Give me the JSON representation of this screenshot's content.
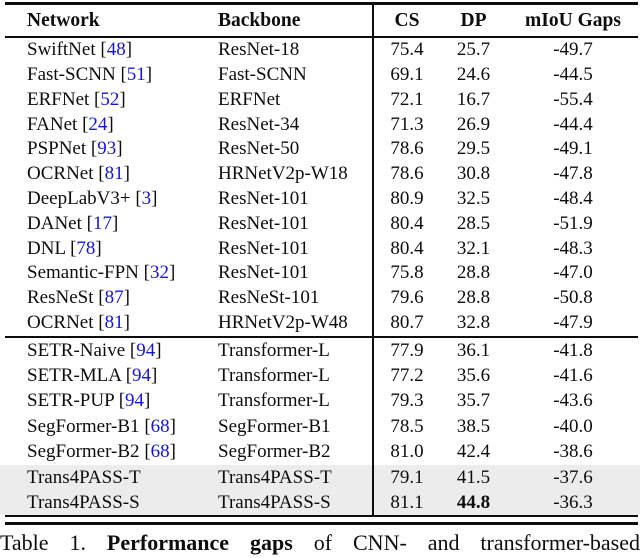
{
  "colors": {
    "cite_blue": "#1414dd",
    "highlight_gray": "#ececec"
  },
  "table": {
    "header": {
      "network": "Network",
      "backbone": "Backbone",
      "cs": "CS",
      "dp": "DP",
      "miou": "mIoU Gaps"
    },
    "rows": [
      {
        "network": "SwiftNet",
        "cite": {
          "pre": "[",
          "num": "48",
          "post": "]"
        },
        "backbone": "ResNet-18",
        "cs": "75.4",
        "dp": "25.7",
        "miou": "-49.7"
      },
      {
        "network": "Fast-SCNN",
        "cite": {
          "pre": "[",
          "num": "51",
          "post": "]"
        },
        "backbone": "Fast-SCNN",
        "cs": "69.1",
        "dp": "24.6",
        "miou": "-44.5"
      },
      {
        "network": "ERFNet",
        "cite": {
          "pre": "[",
          "num": "52",
          "post": "]"
        },
        "backbone": "ERFNet",
        "cs": "72.1",
        "dp": "16.7",
        "miou": "-55.4"
      },
      {
        "network": "FANet",
        "cite": {
          "pre": "[",
          "num": "24",
          "post": "]"
        },
        "backbone": "ResNet-34",
        "cs": "71.3",
        "dp": "26.9",
        "miou": "-44.4"
      },
      {
        "network": "PSPNet",
        "cite": {
          "pre": "[",
          "num": "93",
          "post": "]"
        },
        "backbone": "ResNet-50",
        "cs": "78.6",
        "dp": "29.5",
        "miou": "-49.1"
      },
      {
        "network": "OCRNet",
        "cite": {
          "pre": "[",
          "num": "81",
          "post": "]"
        },
        "backbone": "HRNetV2p-W18",
        "cs": "78.6",
        "dp": "30.8",
        "miou": "-47.8"
      },
      {
        "network": "DeepLabV3+",
        "cite": {
          "pre": "[",
          "num": "3",
          "post": "]"
        },
        "backbone": "ResNet-101",
        "cs": "80.9",
        "dp": "32.5",
        "miou": "-48.4"
      },
      {
        "network": "DANet",
        "cite": {
          "pre": "[",
          "num": "17",
          "post": "]"
        },
        "backbone": "ResNet-101",
        "cs": "80.4",
        "dp": "28.5",
        "miou": "-51.9"
      },
      {
        "network": "DNL",
        "cite": {
          "pre": "[",
          "num": "78",
          "post": "]"
        },
        "backbone": "ResNet-101",
        "cs": "80.4",
        "dp": "32.1",
        "miou": "-48.3"
      },
      {
        "network": "Semantic-FPN",
        "cite": {
          "pre": "[",
          "num": "32",
          "post": "]"
        },
        "backbone": "ResNet-101",
        "cs": "75.8",
        "dp": "28.8",
        "miou": "-47.0"
      },
      {
        "network": "ResNeSt",
        "cite": {
          "pre": "[",
          "num": "87",
          "post": "]"
        },
        "backbone": "ResNeSt-101",
        "cs": "79.6",
        "dp": "28.8",
        "miou": "-50.8"
      },
      {
        "network": "OCRNet",
        "cite": {
          "pre": "[",
          "num": "81",
          "post": "]"
        },
        "backbone": "HRNetV2p-W48",
        "cs": "80.7",
        "dp": "32.8",
        "miou": "-47.9"
      },
      {
        "network": "SETR-Naive",
        "cite": {
          "pre": "[",
          "num": "94",
          "post": "]"
        },
        "backbone": "Transformer-L",
        "cs": "77.9",
        "dp": "36.1",
        "miou": "-41.8"
      },
      {
        "network": "SETR-MLA",
        "cite": {
          "pre": "[",
          "num": "94",
          "post": "]"
        },
        "backbone": "Transformer-L",
        "cs": "77.2",
        "dp": "35.6",
        "miou": "-41.6"
      },
      {
        "network": "SETR-PUP",
        "cite": {
          "pre": "[",
          "num": "94",
          "post": "]"
        },
        "backbone": "Transformer-L",
        "cs": "79.3",
        "dp": "35.7",
        "miou": "-43.6"
      },
      {
        "network": "SegFormer-B1",
        "cite": {
          "pre": "[",
          "num": "68",
          "post": "]"
        },
        "backbone": "SegFormer-B1",
        "cs": "78.5",
        "dp": "38.5",
        "miou": "-40.0"
      },
      {
        "network": "SegFormer-B2",
        "cite": {
          "pre": "[",
          "num": "68",
          "post": "]"
        },
        "backbone": "SegFormer-B2",
        "cs": "81.0",
        "dp": "42.4",
        "miou": "-38.6"
      },
      {
        "network": "Trans4PASS-T",
        "backbone": "Trans4PASS-T",
        "cs": "79.1",
        "dp": "41.5",
        "miou": "-37.6"
      },
      {
        "network": "Trans4PASS-S",
        "backbone": "Trans4PASS-S",
        "cs": "81.1",
        "dp": "44.8",
        "miou": "-36.3"
      }
    ]
  },
  "caption": {
    "label": "Table 1.",
    "bold": "Performance gaps",
    "rest": "of CNN- and transformer-based"
  }
}
